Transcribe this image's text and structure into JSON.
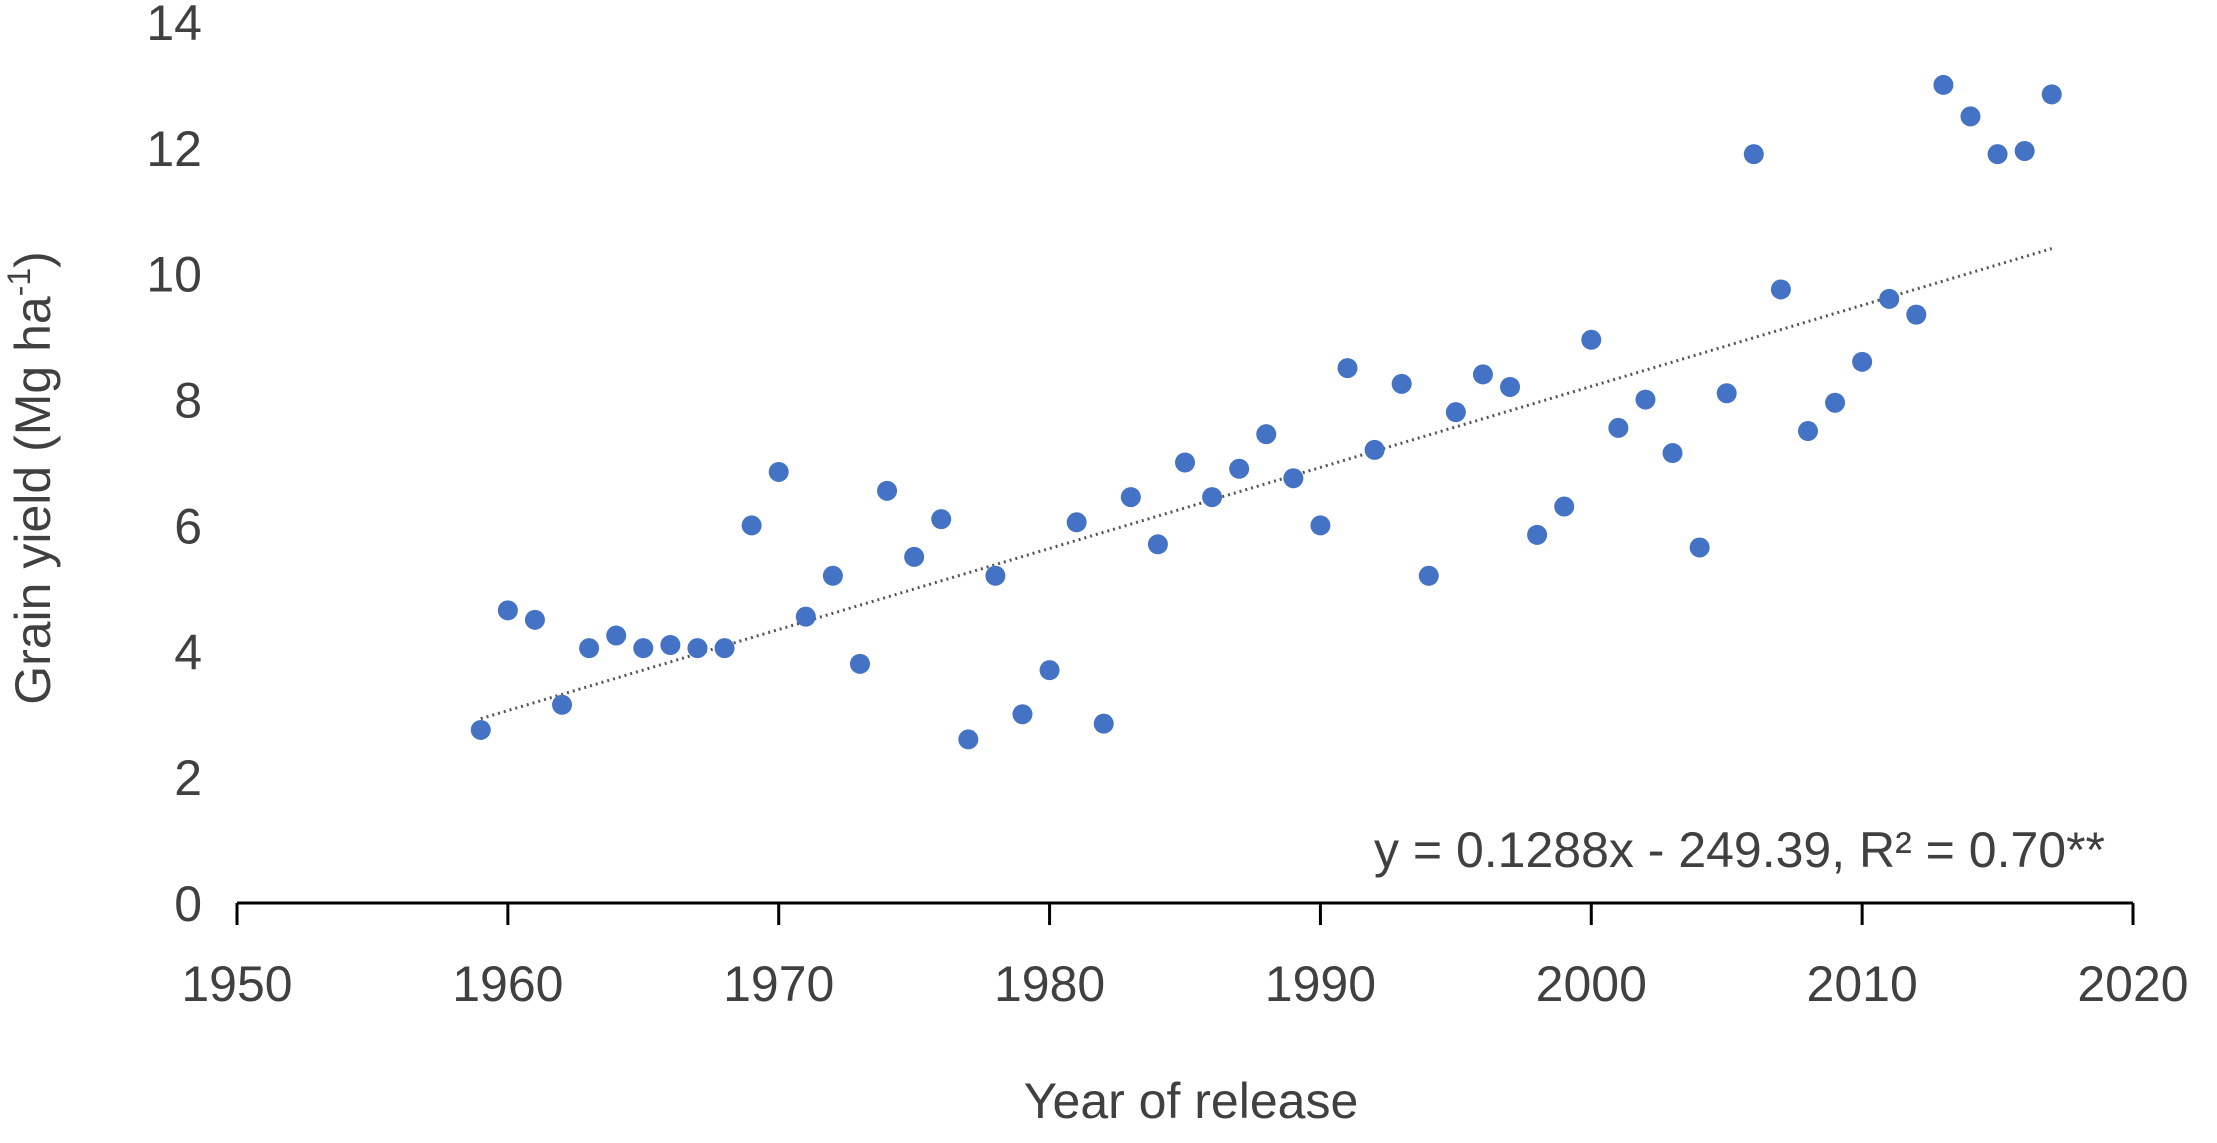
{
  "chart_data": {
    "type": "scatter",
    "title": "",
    "xlabel": "Year of release",
    "ylabel_main": "Grain yield (Mg ha",
    "ylabel_sup": "-1",
    "ylabel_close": ")",
    "xlim": [
      1950,
      2020
    ],
    "ylim": [
      0,
      14
    ],
    "xticks": [
      "1950",
      "1960",
      "1970",
      "1980",
      "1990",
      "2000",
      "2010",
      "2020"
    ],
    "yticks": [
      "0",
      "2",
      "4",
      "6",
      "8",
      "10",
      "12",
      "14"
    ],
    "grid": false,
    "marker_color": "#4472c4",
    "trendline_color": "#555555",
    "axis_color": "#000000",
    "text_color": "#404040",
    "series": [
      {
        "x": [
          1959,
          1960,
          1961,
          1962,
          1963,
          1964,
          1965,
          1966,
          1967,
          1968,
          1969,
          1970,
          1971,
          1972,
          1973,
          1974,
          1975,
          1976,
          1977,
          1978,
          1979,
          1980,
          1981,
          1982,
          1983,
          1984,
          1985,
          1986,
          1987,
          1988,
          1989,
          1990,
          1991,
          1992,
          1993,
          1994,
          1995,
          1996,
          1997,
          1998,
          1999,
          2000,
          2001,
          2002,
          2003,
          2004,
          2005,
          2006,
          2007,
          2008,
          2009,
          2010,
          2011,
          2012,
          2013,
          2014,
          2015,
          2016,
          2017
        ],
        "y": [
          2.75,
          4.65,
          4.5,
          3.15,
          4.05,
          4.25,
          4.05,
          4.1,
          4.05,
          4.05,
          6.0,
          6.85,
          4.55,
          5.2,
          3.8,
          6.55,
          5.5,
          6.1,
          2.6,
          5.2,
          3.0,
          3.7,
          6.05,
          2.85,
          6.45,
          5.7,
          7.0,
          6.45,
          6.9,
          7.45,
          6.75,
          6.0,
          8.5,
          7.2,
          8.25,
          5.2,
          7.8,
          8.4,
          8.2,
          5.85,
          6.3,
          8.95,
          7.55,
          8.0,
          7.15,
          5.65,
          8.1,
          11.9,
          9.75,
          7.5,
          7.95,
          8.6,
          9.6,
          9.35,
          13.0,
          12.5,
          11.9,
          11.95,
          12.85
        ]
      }
    ],
    "trendline": {
      "slope": 0.1288,
      "intercept": -249.39,
      "x_range": [
        1959,
        2017
      ]
    },
    "annotation": "y = 0.1288x - 249.39, R² = 0.70**"
  }
}
